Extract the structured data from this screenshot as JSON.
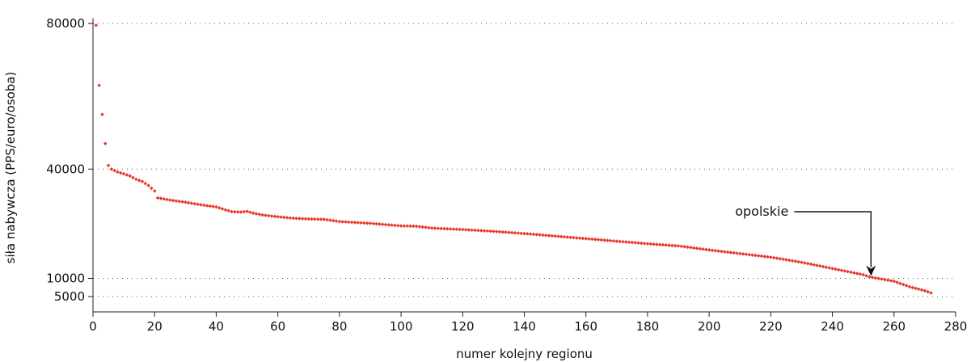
{
  "chart_data": {
    "type": "scatter",
    "title": "",
    "xlabel": "numer kolejny regionu",
    "ylabel": "siła nabywcza (PPS/euro/osoba)",
    "xlim": [
      0,
      280
    ],
    "ylim": [
      4000,
      81000
    ],
    "xticks": [
      0,
      20,
      40,
      60,
      80,
      100,
      120,
      140,
      160,
      180,
      200,
      220,
      240,
      260,
      280
    ],
    "yticks": [
      5000,
      10000,
      40000,
      80000
    ],
    "ygrid": [
      5000,
      10000,
      40000,
      80000
    ],
    "grid": true,
    "marker_color": "#e8392b",
    "anchors": [
      [
        1,
        79500
      ],
      [
        2,
        63000
      ],
      [
        3,
        55000
      ],
      [
        4,
        47000
      ],
      [
        5,
        41000
      ],
      [
        6,
        40000
      ],
      [
        8,
        39200
      ],
      [
        10,
        38700
      ],
      [
        12,
        38100
      ],
      [
        14,
        37200
      ],
      [
        16,
        36600
      ],
      [
        18,
        35500
      ],
      [
        20,
        34000
      ],
      [
        21,
        32100
      ],
      [
        25,
        31500
      ],
      [
        30,
        30900
      ],
      [
        35,
        30200
      ],
      [
        40,
        29600
      ],
      [
        43,
        28800
      ],
      [
        45,
        28300
      ],
      [
        48,
        28200
      ],
      [
        50,
        28400
      ],
      [
        52,
        27900
      ],
      [
        55,
        27400
      ],
      [
        60,
        26900
      ],
      [
        65,
        26500
      ],
      [
        70,
        26300
      ],
      [
        75,
        26200
      ],
      [
        80,
        25600
      ],
      [
        90,
        25100
      ],
      [
        100,
        24400
      ],
      [
        105,
        24300
      ],
      [
        110,
        23800
      ],
      [
        120,
        23400
      ],
      [
        130,
        22900
      ],
      [
        140,
        22300
      ],
      [
        150,
        21600
      ],
      [
        160,
        20900
      ],
      [
        170,
        20200
      ],
      [
        180,
        19500
      ],
      [
        190,
        18900
      ],
      [
        200,
        17800
      ],
      [
        210,
        16800
      ],
      [
        220,
        15800
      ],
      [
        230,
        14400
      ],
      [
        240,
        12700
      ],
      [
        250,
        11000
      ],
      [
        252,
        10400
      ],
      [
        260,
        9200
      ],
      [
        265,
        7700
      ],
      [
        270,
        6600
      ],
      [
        272,
        6000
      ]
    ],
    "annotation": {
      "text": "opolskie",
      "x": 252,
      "y": 10400
    }
  }
}
